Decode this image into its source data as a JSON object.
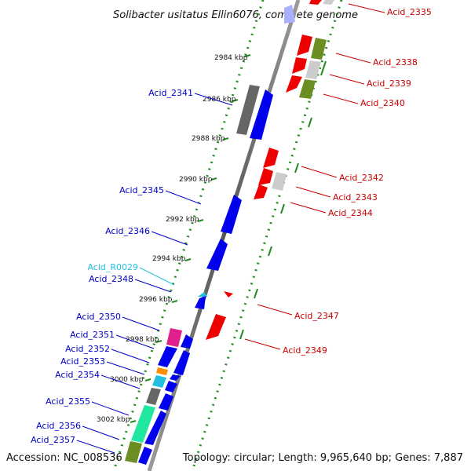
{
  "title": "Solibacter usitatus Ellin6076, complete genome",
  "footer": {
    "accession": "Accession: NC_008536",
    "topology": "Topology: circular; Length: 9,965,640 bp; Genes: 7,887"
  },
  "kbp_labels": [
    "2984 kbp",
    "2986 kbp",
    "2988 kbp",
    "2990 kbp",
    "2992 kbp",
    "2994 kbp",
    "2996 kbp",
    "2998 kbp",
    "3000 kbp",
    "3002 kbp"
  ],
  "left_labels": [
    "Acid_2341",
    "Acid_2345",
    "Acid_2346",
    "Acid_R0029",
    "Acid_2348",
    "Acid_2350",
    "Acid_2351",
    "Acid_2352",
    "Acid_2353",
    "Acid_2354",
    "Acid_2355",
    "Acid_2356",
    "Acid_2357"
  ],
  "right_labels": [
    "Acid_2335",
    "Acid_2338",
    "Acid_2339",
    "Acid_2340",
    "Acid_2342",
    "Acid_2343",
    "Acid_2344",
    "Acid_2347",
    "Acid_2349"
  ],
  "colors": {
    "blue": "#0000ee",
    "red": "#ee0000",
    "grey": "#666666",
    "lightgrey": "#cccccc",
    "olive": "#6b8e23",
    "magenta": "#e0208c",
    "orange": "#ff8c00",
    "cyan": "#22c0e0",
    "aqua": "#20e8a0",
    "green_ticks": "#228b22"
  }
}
